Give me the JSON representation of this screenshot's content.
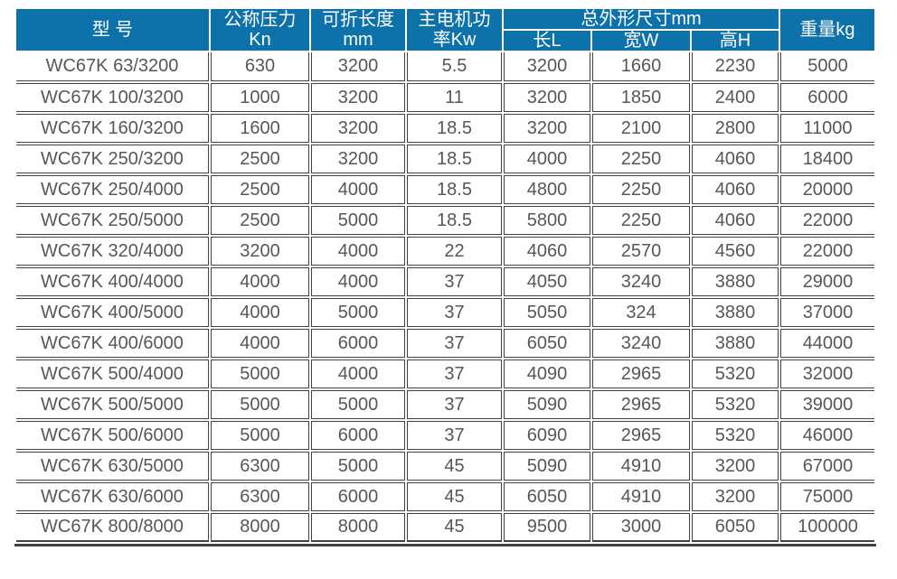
{
  "table": {
    "title_semantic": "WC67K press brake specification table",
    "header": {
      "model": "型 号",
      "pressure_line1": "公称压力",
      "pressure_line2": "Kn",
      "fold_length_line1": "可折长度",
      "fold_length_line2": "mm",
      "motor_power_line1": "主电机功",
      "motor_power_line2": "率Kw",
      "dims_group": "总外形尺寸mm",
      "dim_length": "长L",
      "dim_width": "宽W",
      "dim_height": "高H",
      "weight": "重量kg"
    },
    "rows": [
      [
        "WC67K 63/3200",
        "630",
        "3200",
        "5.5",
        "3200",
        "1660",
        "2230",
        "5000"
      ],
      [
        "WC67K 100/3200",
        "1000",
        "3200",
        "11",
        "3200",
        "1850",
        "2400",
        "6000"
      ],
      [
        "WC67K 160/3200",
        "1600",
        "3200",
        "18.5",
        "3200",
        "2100",
        "2800",
        "11000"
      ],
      [
        "WC67K 250/3200",
        "2500",
        "3200",
        "18.5",
        "4000",
        "2250",
        "4060",
        "18400"
      ],
      [
        "WC67K 250/4000",
        "2500",
        "4000",
        "18.5",
        "4800",
        "2250",
        "4060",
        "20000"
      ],
      [
        "WC67K 250/5000",
        "2500",
        "5000",
        "18.5",
        "5800",
        "2250",
        "4060",
        "22000"
      ],
      [
        "WC67K 320/4000",
        "3200",
        "4000",
        "22",
        "4060",
        "2570",
        "4560",
        "22000"
      ],
      [
        "WC67K 400/4000",
        "4000",
        "4000",
        "37",
        "4050",
        "3240",
        "3880",
        "29000"
      ],
      [
        "WC67K 400/5000",
        "4000",
        "5000",
        "37",
        "5050",
        "324",
        "3880",
        "37000"
      ],
      [
        "WC67K 400/6000",
        "4000",
        "6000",
        "37",
        "6050",
        "3240",
        "3880",
        "44000"
      ],
      [
        "WC67K 500/4000",
        "5000",
        "4000",
        "37",
        "4090",
        "2965",
        "5320",
        "32000"
      ],
      [
        "WC67K 500/5000",
        "5000",
        "5000",
        "37",
        "5090",
        "2965",
        "5320",
        "39000"
      ],
      [
        "WC67K 500/6000",
        "5000",
        "6000",
        "37",
        "6090",
        "2965",
        "5320",
        "46000"
      ],
      [
        "WC67K 630/5000",
        "6300",
        "5000",
        "45",
        "5090",
        "4910",
        "3200",
        "67000"
      ],
      [
        "WC67K 630/6000",
        "6300",
        "6000",
        "45",
        "6050",
        "4910",
        "3200",
        "75000"
      ],
      [
        "WC67K 800/8000",
        "8000",
        "8000",
        "45",
        "9500",
        "3000",
        "6050",
        "100000"
      ]
    ]
  },
  "colors": {
    "header_bg": "#0d72aa",
    "header_text": "#ffffff",
    "cell_text": "#55575a",
    "border": "#414144"
  }
}
